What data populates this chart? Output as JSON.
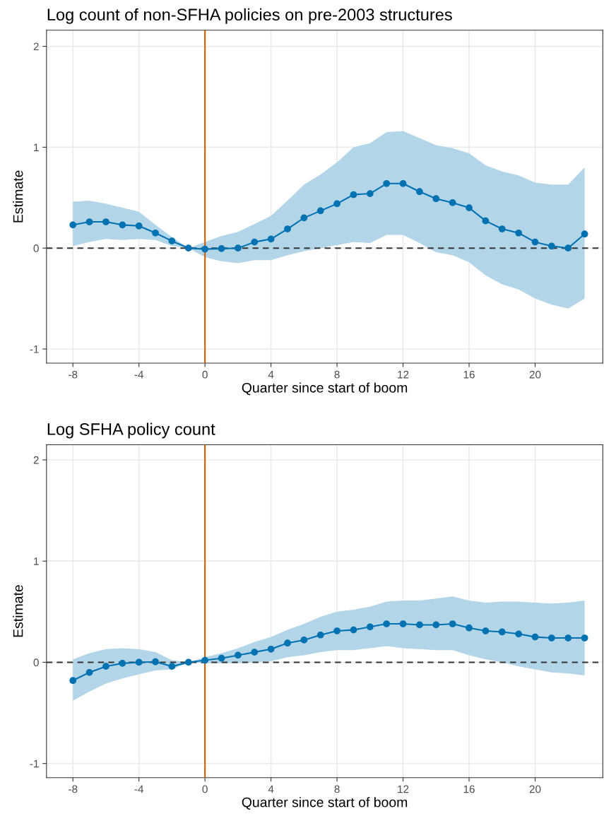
{
  "chart_data": [
    {
      "type": "line",
      "title": "Log count of non-SFHA policies on pre-2003 structures",
      "xlabel": "Quarter since start of boom",
      "ylabel": "Estimate",
      "x": [
        -8,
        -7,
        -6,
        -5,
        -4,
        -3,
        -2,
        -1,
        0,
        1,
        2,
        3,
        4,
        5,
        6,
        7,
        8,
        9,
        10,
        11,
        12,
        13,
        14,
        15,
        16,
        17,
        18,
        19,
        20,
        21,
        22,
        23
      ],
      "series": [
        {
          "color": "#0072b2",
          "values": [
            0.23,
            0.26,
            0.26,
            0.23,
            0.22,
            0.15,
            0.07,
            0,
            -0.01,
            -0.005,
            0,
            0.06,
            0.09,
            0.19,
            0.3,
            0.37,
            0.44,
            0.53,
            0.54,
            0.64,
            0.64,
            0.56,
            0.49,
            0.45,
            0.4,
            0.27,
            0.19,
            0.15,
            0.06,
            0.02,
            0,
            0.14
          ],
          "upper": [
            0.46,
            0.47,
            0.44,
            0.4,
            0.36,
            0.23,
            0.11,
            0,
            0.06,
            0.12,
            0.16,
            0.24,
            0.32,
            0.47,
            0.63,
            0.73,
            0.85,
            1.0,
            1.04,
            1.15,
            1.16,
            1.09,
            1.02,
            0.99,
            0.94,
            0.82,
            0.76,
            0.72,
            0.65,
            0.63,
            0.63,
            0.8
          ],
          "lower": [
            0.02,
            0.06,
            0.09,
            0.08,
            0.09,
            0.08,
            0.02,
            0,
            -0.09,
            -0.13,
            -0.15,
            -0.12,
            -0.12,
            -0.07,
            -0.03,
            0,
            0.03,
            0.06,
            0.05,
            0.13,
            0.13,
            0.05,
            -0.04,
            -0.07,
            -0.14,
            -0.27,
            -0.36,
            -0.41,
            -0.5,
            -0.56,
            -0.6,
            -0.5
          ]
        }
      ],
      "xlim": [
        -9.6,
        24.1
      ],
      "ylim": [
        -1.14,
        2.16
      ],
      "xticks": [
        -8,
        -4,
        0,
        4,
        8,
        12,
        16,
        20
      ],
      "yticks": [
        -1,
        0,
        1,
        2
      ],
      "ref_lines": [
        {
          "axis": "y",
          "value": 0,
          "color": "#333333",
          "line_style": "dashed"
        },
        {
          "axis": "x",
          "value": 0,
          "color": "#d55e00",
          "line_style": "solid"
        }
      ],
      "grid": true,
      "marker": "circle",
      "line_style": "solid"
    },
    {
      "type": "line",
      "title": "Log SFHA policy count",
      "xlabel": "Quarter since start of boom",
      "ylabel": "Estimate",
      "x": [
        -8,
        -7,
        -6,
        -5,
        -4,
        -3,
        -2,
        -1,
        0,
        1,
        2,
        3,
        4,
        5,
        6,
        7,
        8,
        9,
        10,
        11,
        12,
        13,
        14,
        15,
        16,
        17,
        18,
        19,
        20,
        21,
        22,
        23
      ],
      "series": [
        {
          "color": "#0072b2",
          "values": [
            -0.18,
            -0.1,
            -0.04,
            -0.01,
            0,
            0.005,
            -0.04,
            0,
            0.02,
            0.04,
            0.07,
            0.1,
            0.13,
            0.19,
            0.22,
            0.27,
            0.31,
            0.32,
            0.35,
            0.38,
            0.38,
            0.37,
            0.37,
            0.38,
            0.34,
            0.31,
            0.3,
            0.28,
            0.25,
            0.24,
            0.24,
            0.24
          ],
          "upper": [
            0.03,
            0.09,
            0.13,
            0.14,
            0.13,
            0.1,
            0.02,
            0,
            0.05,
            0.09,
            0.14,
            0.2,
            0.25,
            0.32,
            0.38,
            0.45,
            0.5,
            0.52,
            0.55,
            0.6,
            0.61,
            0.61,
            0.63,
            0.65,
            0.61,
            0.59,
            0.6,
            0.6,
            0.59,
            0.58,
            0.59,
            0.61
          ],
          "lower": [
            -0.38,
            -0.29,
            -0.21,
            -0.16,
            -0.12,
            -0.08,
            -0.07,
            0,
            -0.01,
            -0.01,
            -0.01,
            0,
            0.01,
            0.05,
            0.07,
            0.1,
            0.12,
            0.12,
            0.14,
            0.16,
            0.14,
            0.13,
            0.12,
            0.12,
            0.07,
            0.03,
            0,
            -0.04,
            -0.07,
            -0.1,
            -0.11,
            -0.13
          ]
        }
      ],
      "xlim": [
        -9.6,
        24.1
      ],
      "ylim": [
        -1.14,
        2.15
      ],
      "xticks": [
        -8,
        -4,
        0,
        4,
        8,
        12,
        16,
        20
      ],
      "yticks": [
        -1,
        0,
        1,
        2
      ],
      "ref_lines": [
        {
          "axis": "y",
          "value": 0,
          "color": "#333333",
          "line_style": "dashed"
        },
        {
          "axis": "x",
          "value": 0,
          "color": "#d55e00",
          "line_style": "solid"
        }
      ],
      "grid": true,
      "marker": "circle",
      "line_style": "solid"
    }
  ]
}
